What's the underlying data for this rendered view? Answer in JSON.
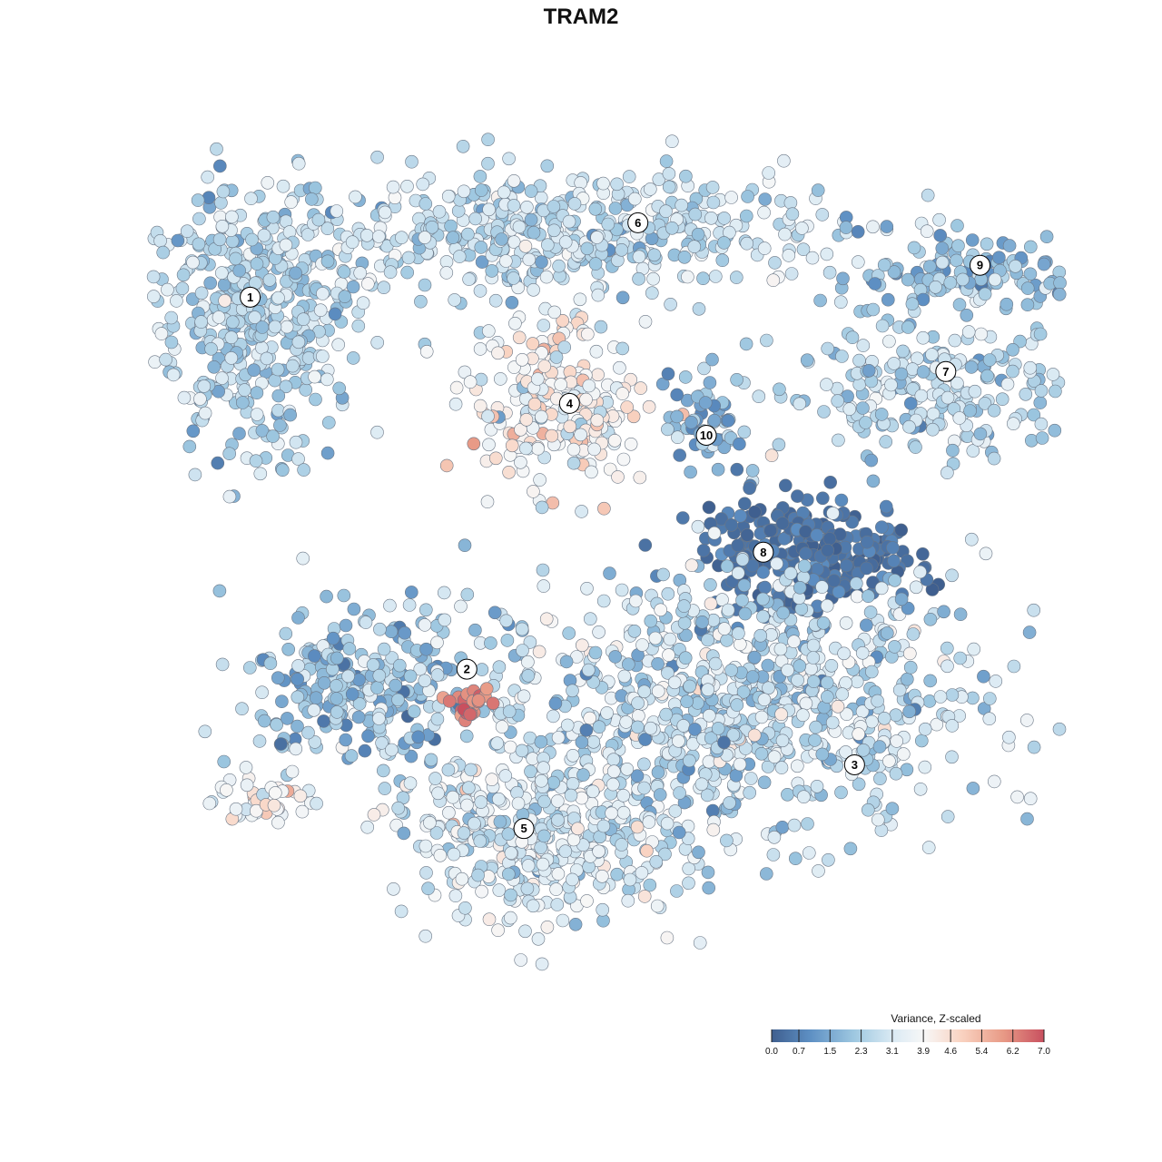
{
  "chart_data": {
    "type": "scatter",
    "title": "TRAM2",
    "legend": {
      "title": "Variance, Z-scaled",
      "placement": "bottom-right",
      "ticks": [
        "0.0",
        "0.7",
        "1.5",
        "2.3",
        "3.1",
        "3.9",
        "4.6",
        "5.4",
        "6.2",
        "7.0"
      ],
      "range": [
        0.0,
        7.0
      ]
    },
    "palette": [
      "#3f5f8f",
      "#5d8fc3",
      "#9dc7e0",
      "#dcebf4",
      "#f7f7f7",
      "#f9d2c0",
      "#e89a86",
      "#c8505f"
    ],
    "cluster_labels": [
      {
        "id": "1",
        "x": 1.0,
        "y": 6.6
      },
      {
        "id": "2",
        "x": 2.9,
        "y": 3.1
      },
      {
        "id": "3",
        "x": 6.3,
        "y": 2.2
      },
      {
        "id": "4",
        "x": 3.8,
        "y": 5.6
      },
      {
        "id": "5",
        "x": 3.4,
        "y": 1.6
      },
      {
        "id": "6",
        "x": 4.4,
        "y": 7.3
      },
      {
        "id": "7",
        "x": 7.1,
        "y": 5.9
      },
      {
        "id": "8",
        "x": 5.5,
        "y": 4.2
      },
      {
        "id": "9",
        "x": 7.4,
        "y": 6.9
      },
      {
        "id": "10",
        "x": 5.0,
        "y": 5.3
      }
    ],
    "clusters": [
      {
        "id": "1",
        "cx": 1.0,
        "cy": 6.4,
        "sx": 0.55,
        "sy": 0.75,
        "n": 420,
        "v": 2.4,
        "vsd": 0.6
      },
      {
        "id": "6",
        "cx": 3.6,
        "cy": 7.2,
        "sx": 1.5,
        "sy": 0.35,
        "n": 520,
        "v": 2.6,
        "vsd": 0.6
      },
      {
        "id": "4",
        "cx": 3.7,
        "cy": 5.6,
        "sx": 0.45,
        "sy": 0.45,
        "n": 230,
        "v": 3.9,
        "vsd": 0.8
      },
      {
        "id": "9",
        "cx": 7.3,
        "cy": 6.8,
        "sx": 0.6,
        "sy": 0.25,
        "n": 130,
        "v": 1.9,
        "vsd": 0.6
      },
      {
        "id": "7",
        "cx": 7.0,
        "cy": 5.7,
        "sx": 0.8,
        "sy": 0.35,
        "n": 230,
        "v": 2.4,
        "vsd": 0.6
      },
      {
        "id": "10",
        "cx": 5.0,
        "cy": 5.4,
        "sx": 0.2,
        "sy": 0.3,
        "n": 55,
        "v": 1.6,
        "vsd": 0.6
      },
      {
        "id": "8",
        "cx": 5.9,
        "cy": 4.2,
        "sx": 0.55,
        "sy": 0.3,
        "n": 260,
        "v": 0.4,
        "vsd": 0.3
      },
      {
        "id": "2",
        "cx": 2.0,
        "cy": 2.9,
        "sx": 0.6,
        "sy": 0.4,
        "n": 260,
        "v": 2.0,
        "vsd": 0.7
      },
      {
        "id": "3",
        "cx": 5.2,
        "cy": 2.8,
        "sx": 1.3,
        "sy": 0.75,
        "n": 900,
        "v": 2.6,
        "vsd": 0.8
      },
      {
        "id": "5",
        "cx": 3.5,
        "cy": 1.5,
        "sx": 0.75,
        "sy": 0.45,
        "n": 380,
        "v": 3.0,
        "vsd": 0.7
      },
      {
        "id": "2b",
        "cx": 1.1,
        "cy": 1.9,
        "sx": 0.3,
        "sy": 0.15,
        "n": 40,
        "v": 3.9,
        "vsd": 0.7
      },
      {
        "id": "2c",
        "cx": 2.95,
        "cy": 2.75,
        "sx": 0.1,
        "sy": 0.08,
        "n": 25,
        "v": 6.3,
        "vsd": 0.3
      }
    ],
    "xlim": [
      0,
      8.2
    ],
    "ylim": [
      0,
      8.2
    ],
    "grid": false,
    "xlabel": "",
    "ylabel": ""
  }
}
